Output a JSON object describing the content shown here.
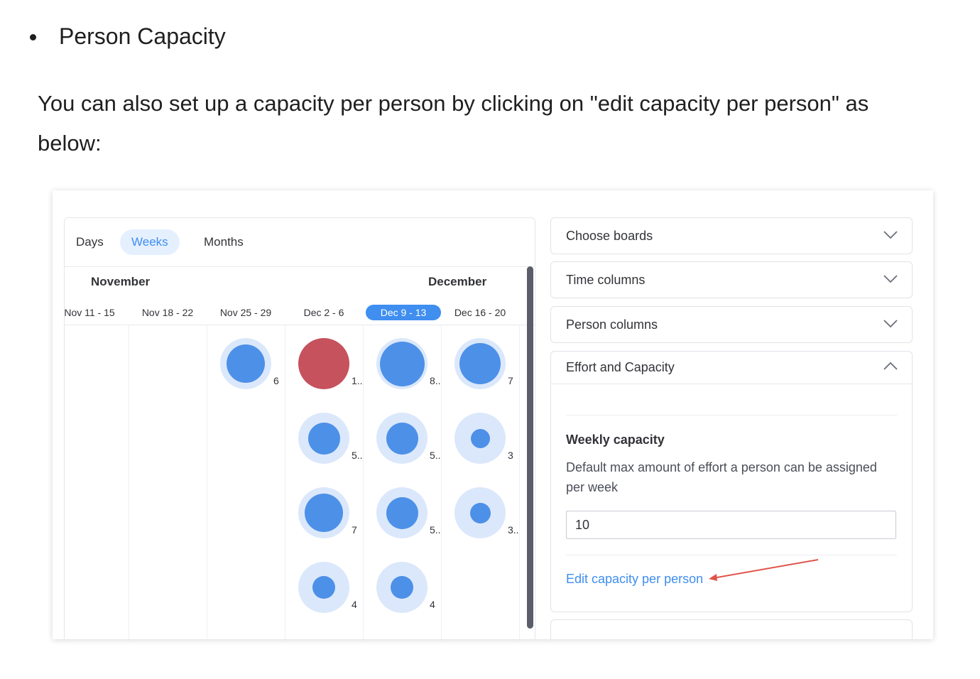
{
  "article": {
    "heading": "Person Capacity",
    "paragraph": " You can also set up a capacity per person by clicking on \"edit capacity per person\" as below:"
  },
  "screenshot": {
    "view_tabs": [
      {
        "label": "Days",
        "active": false
      },
      {
        "label": "Weeks",
        "active": true
      },
      {
        "label": "Months",
        "active": false
      }
    ],
    "months": [
      "November",
      "December"
    ],
    "weeks": [
      {
        "label": "Nov 11 - 15",
        "active": false
      },
      {
        "label": "Nov 18 - 22",
        "active": false
      },
      {
        "label": "Nov 25 - 29",
        "active": false
      },
      {
        "label": "Dec 2 - 6",
        "active": false
      },
      {
        "label": "Dec 9 - 13",
        "active": true
      },
      {
        "label": "Dec 16 - 20",
        "active": false
      }
    ],
    "bubbles": [
      {
        "week": 2,
        "row": 0,
        "label": "6",
        "fill": 0.75,
        "color": "#4d90e8"
      },
      {
        "week": 3,
        "row": 0,
        "label": "1..",
        "fill": 1.0,
        "color": "#c5525d"
      },
      {
        "week": 4,
        "row": 0,
        "label": "8..",
        "fill": 0.88,
        "color": "#4d90e8"
      },
      {
        "week": 5,
        "row": 0,
        "label": "7",
        "fill": 0.8,
        "color": "#4d90e8"
      },
      {
        "week": 3,
        "row": 1,
        "label": "5..",
        "fill": 0.62,
        "color": "#4d90e8"
      },
      {
        "week": 4,
        "row": 1,
        "label": "5..",
        "fill": 0.62,
        "color": "#4d90e8"
      },
      {
        "week": 5,
        "row": 1,
        "label": "3",
        "fill": 0.38,
        "color": "#4d90e8"
      },
      {
        "week": 3,
        "row": 2,
        "label": "7",
        "fill": 0.75,
        "color": "#4d90e8"
      },
      {
        "week": 4,
        "row": 2,
        "label": "5..",
        "fill": 0.62,
        "color": "#4d90e8"
      },
      {
        "week": 5,
        "row": 2,
        "label": "3..",
        "fill": 0.4,
        "color": "#4d90e8"
      },
      {
        "week": 3,
        "row": 3,
        "label": "4",
        "fill": 0.45,
        "color": "#4d90e8"
      },
      {
        "week": 4,
        "row": 3,
        "label": "4",
        "fill": 0.45,
        "color": "#4d90e8"
      }
    ],
    "settings": {
      "choose_boards": "Choose boards",
      "time_columns": "Time columns",
      "person_columns": "Person columns",
      "effort_capacity": {
        "title": "Effort and Capacity",
        "weekly_title": "Weekly capacity",
        "weekly_desc": "Default max amount of effort a person can be assigned per week",
        "input_value": "10",
        "edit_link": "Edit capacity per person"
      }
    },
    "colors": {
      "accent": "#3f8ef0",
      "arrow": "#e0534a",
      "overload": "#c5525d"
    }
  }
}
